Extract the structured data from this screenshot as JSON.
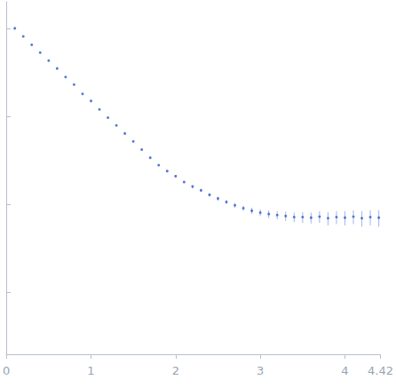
{
  "chart_data": {
    "type": "scatter",
    "log": "y",
    "grid": false,
    "tick_labels": "x",
    "color": "#2f5fc4",
    "marker": "circle",
    "xlim": [
      0,
      4.42
    ],
    "xticks": [
      0,
      1,
      2,
      3,
      4
    ],
    "ylim": [
      0.0002,
      2
    ],
    "yticks": [
      0.001,
      0.01,
      0.1,
      1
    ],
    "x": [
      0.1,
      0.2,
      0.3,
      0.4,
      0.5,
      0.6,
      0.7,
      0.8,
      0.9,
      1.0,
      1.1,
      1.2,
      1.3,
      1.4,
      1.5,
      1.6,
      1.7,
      1.8,
      1.9,
      2.0,
      2.1,
      2.2,
      2.3,
      2.4,
      2.5,
      2.6,
      2.7,
      2.8,
      2.9,
      3.0,
      3.1,
      3.2,
      3.3,
      3.4,
      3.5,
      3.6,
      3.7,
      3.8,
      3.9,
      4.0,
      4.1,
      4.2,
      4.3,
      4.4
    ],
    "values": [
      1.0,
      0.81,
      0.65,
      0.53,
      0.43,
      0.35,
      0.28,
      0.23,
      0.18,
      0.15,
      0.12,
      0.097,
      0.079,
      0.064,
      0.052,
      0.042,
      0.034,
      0.028,
      0.024,
      0.021,
      0.018,
      0.016,
      0.0145,
      0.0129,
      0.0117,
      0.0107,
      0.0098,
      0.0091,
      0.0085,
      0.0081,
      0.0078,
      0.0076,
      0.0074,
      0.0072,
      0.0072,
      0.0071,
      0.0073,
      0.007,
      0.0072,
      0.0071,
      0.0073,
      0.007,
      0.0072,
      0.0071
    ],
    "errors": [
      0.01,
      0.008,
      0.006,
      0.005,
      0.004,
      0.003,
      0.0025,
      0.002,
      0.0016,
      0.0013,
      0.001,
      0.0009,
      0.0008,
      0.0007,
      0.0006,
      0.0005,
      0.0005,
      0.0005,
      0.0005,
      0.0005,
      0.0005,
      0.0005,
      0.0005,
      0.0005,
      0.0006,
      0.0006,
      0.0006,
      0.0006,
      0.0007,
      0.0007,
      0.0008,
      0.0008,
      0.0009,
      0.0009,
      0.001,
      0.001,
      0.0011,
      0.0012,
      0.0012,
      0.0013,
      0.0013,
      0.0014,
      0.0014,
      0.0015
    ]
  }
}
